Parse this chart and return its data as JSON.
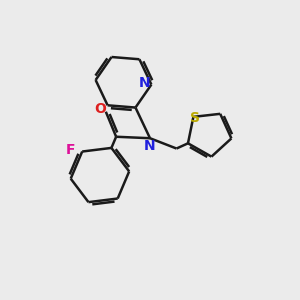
{
  "background_color": "#ebebeb",
  "bond_color": "#1a1a1a",
  "N_color": "#2020dd",
  "O_color": "#dd2020",
  "F_color": "#dd1199",
  "S_color": "#bbaa00",
  "bond_width": 1.8,
  "figsize": [
    3.0,
    3.0
  ],
  "dpi": 100,
  "xlim": [
    0,
    10
  ],
  "ylim": [
    0,
    10
  ]
}
